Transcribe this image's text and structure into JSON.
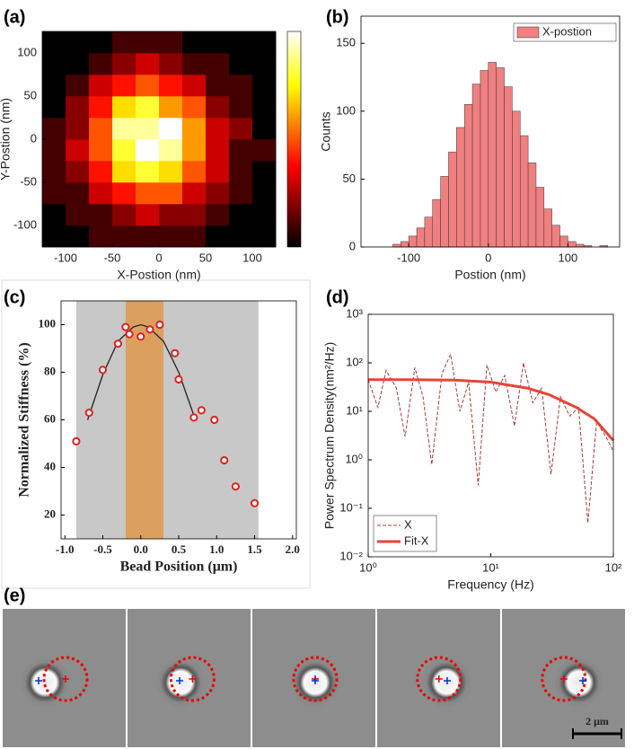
{
  "chart_data": [
    {
      "type": "heatmap",
      "label": "(a)",
      "xlabel": "X-Postion (nm)",
      "ylabel": "Y-Postion (nm)",
      "xlim": [
        -125,
        125
      ],
      "ylim": [
        -125,
        125
      ],
      "xticks": [
        -100,
        -50,
        0,
        50,
        100
      ],
      "yticks": [
        -100,
        -50,
        0,
        50,
        100
      ],
      "values": [
        [
          0,
          0,
          0.1,
          0.1,
          0.1,
          0.1,
          0.1,
          0,
          0,
          0
        ],
        [
          0,
          0.1,
          0.1,
          0.2,
          0.3,
          0.2,
          0.2,
          0.1,
          0,
          0
        ],
        [
          0.1,
          0.1,
          0.3,
          0.4,
          0.5,
          0.5,
          0.3,
          0.2,
          0.1,
          0
        ],
        [
          0.1,
          0.2,
          0.4,
          0.7,
          0.8,
          0.7,
          0.5,
          0.3,
          0.1,
          0
        ],
        [
          0.1,
          0.3,
          0.5,
          0.8,
          1.0,
          0.9,
          0.6,
          0.3,
          0.1,
          0.1
        ],
        [
          0.1,
          0.2,
          0.5,
          0.9,
          0.9,
          1.0,
          0.6,
          0.3,
          0.2,
          0
        ],
        [
          0,
          0.2,
          0.4,
          0.7,
          0.8,
          0.6,
          0.5,
          0.2,
          0.1,
          0
        ],
        [
          0,
          0.1,
          0.3,
          0.4,
          0.5,
          0.4,
          0.3,
          0.1,
          0.1,
          0
        ],
        [
          0,
          0,
          0.1,
          0.2,
          0.3,
          0.2,
          0.1,
          0.1,
          0,
          0
        ],
        [
          0,
          0,
          0,
          0.1,
          0.1,
          0.1,
          0,
          0,
          0,
          0
        ]
      ]
    },
    {
      "type": "histogram",
      "label": "(b)",
      "xlabel": "Postion (nm)",
      "ylabel": "Counts",
      "xlim": [
        -160,
        165
      ],
      "ylim": [
        0,
        170
      ],
      "xticks": [
        -100,
        0,
        100
      ],
      "yticks": [
        0,
        50,
        100,
        150
      ],
      "bins": [
        -130,
        -120,
        -110,
        -100,
        -90,
        -80,
        -70,
        -60,
        -50,
        -40,
        -30,
        -20,
        -10,
        0,
        10,
        20,
        30,
        40,
        50,
        60,
        70,
        80,
        90,
        100,
        110,
        120,
        130,
        140,
        150
      ],
      "series": [
        {
          "name": "X-postion",
          "color": "#f08080",
          "values": [
            0,
            2,
            4,
            8,
            14,
            22,
            35,
            52,
            70,
            88,
            105,
            120,
            130,
            136,
            132,
            118,
            100,
            82,
            62,
            44,
            28,
            16,
            8,
            4,
            2,
            1,
            0,
            1
          ]
        }
      ]
    },
    {
      "type": "scatter",
      "label": "(c)",
      "xlabel": "Bead Position (μm)",
      "ylabel": "Normalized Stiffness (%)",
      "xlim": [
        -1.05,
        2.05
      ],
      "ylim": [
        10,
        110
      ],
      "xticks": [
        {
          "value": -1,
          "label": "-1.0"
        },
        {
          "value": -0.5,
          "label": "-0.5"
        },
        {
          "value": 0,
          "label": "0.0"
        },
        {
          "value": 0.5,
          "label": "0.5"
        },
        {
          "value": 1,
          "label": "1.0"
        },
        {
          "value": 1.5,
          "label": "1.5"
        },
        {
          "value": 2,
          "label": "2.0"
        }
      ],
      "yticks": [
        20,
        40,
        60,
        80,
        100
      ],
      "regions": [
        {
          "range": [
            -0.85,
            1.55
          ],
          "color": "#c8c8c8"
        },
        {
          "range": [
            -0.2,
            0.3
          ],
          "color": "#dba060"
        }
      ],
      "x": [
        -0.85,
        -0.68,
        -0.5,
        -0.3,
        -0.2,
        -0.15,
        0,
        0.12,
        0.25,
        0.45,
        0.5,
        0.7,
        0.8,
        0.97,
        1.1,
        1.25,
        1.5
      ],
      "values": [
        51,
        63,
        81,
        92,
        99,
        96,
        95,
        98,
        100,
        88,
        77,
        61,
        64,
        60,
        43,
        32,
        25
      ],
      "color": "#e02020",
      "fit": {
        "x": [
          -0.7,
          -0.5,
          -0.3,
          -0.1,
          0,
          0.1,
          0.3,
          0.5,
          0.72
        ],
        "values": [
          60,
          79,
          93,
          99,
          100,
          99,
          93,
          80,
          60
        ],
        "color": "#222222"
      }
    },
    {
      "type": "line",
      "label": "(d)",
      "xlabel": "Frequency (Hz)",
      "ylabel": "Power Spectrum Density(nm²/Hz)",
      "xlog": true,
      "ylog": true,
      "xlim": [
        1,
        100
      ],
      "ylim": [
        0.01,
        1000
      ],
      "xticks": [
        {
          "value": 1,
          "label": "10⁰"
        },
        {
          "value": 10,
          "label": "10¹"
        },
        {
          "value": 100,
          "label": "10²"
        }
      ],
      "yticks": [
        {
          "value": 0.01,
          "label": "10⁻²"
        },
        {
          "value": 0.1,
          "label": "10⁻¹"
        },
        {
          "value": 1,
          "label": "10⁰"
        },
        {
          "value": 10,
          "label": "10¹"
        },
        {
          "value": 100,
          "label": "10²"
        },
        {
          "value": 1000,
          "label": "10³"
        }
      ],
      "series": [
        {
          "name": "X",
          "color": "#a0403a",
          "dashed": true,
          "x": [
            1,
            1.2,
            1.4,
            1.7,
            2,
            2.4,
            2.8,
            3.3,
            4,
            4.7,
            5.6,
            6.6,
            7.9,
            9.3,
            11,
            13,
            15.6,
            18.5,
            22,
            26,
            31,
            37,
            44,
            52,
            62,
            73,
            87,
            100
          ],
          "values": [
            45,
            12,
            70,
            30,
            3,
            80,
            20,
            0.8,
            60,
            150,
            10,
            40,
            0.3,
            90,
            25,
            55,
            5,
            100,
            15,
            30,
            0.5,
            20,
            8,
            12,
            0.05,
            6,
            3,
            1.5
          ]
        },
        {
          "name": "Fit-X",
          "color": "#e8443a",
          "x": [
            1,
            2,
            5,
            10,
            20,
            30,
            50,
            70,
            100
          ],
          "values": [
            45,
            45,
            44,
            40,
            30,
            22,
            12,
            7,
            2.5
          ]
        }
      ]
    }
  ],
  "figure_e": {
    "label": "(e)",
    "scale_bar": "2 μm"
  }
}
